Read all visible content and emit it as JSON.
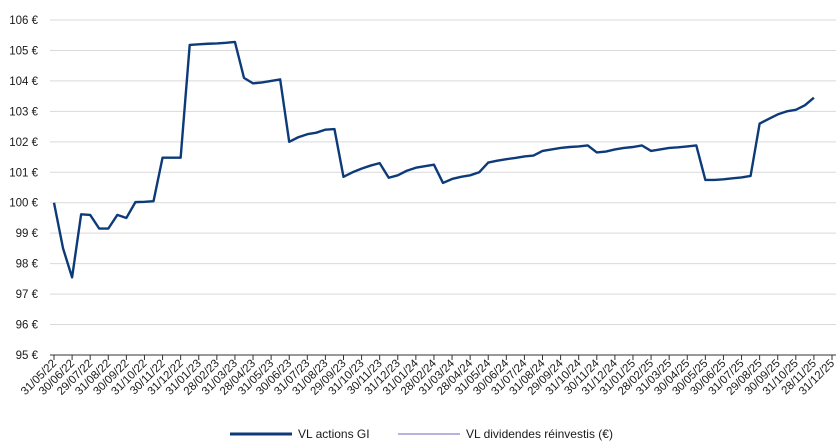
{
  "chart_data": {
    "type": "line",
    "title": "",
    "xlabel": "",
    "ylabel": "",
    "y_unit_suffix": " €",
    "ylim": [
      95,
      106
    ],
    "y_ticks": [
      95,
      96,
      97,
      98,
      99,
      100,
      101,
      102,
      103,
      104,
      105,
      106
    ],
    "y_tick_labels": [
      "95 €",
      "96 €",
      "97 €",
      "98 €",
      "99 €",
      "100 €",
      "101 €",
      "102 €",
      "103 €",
      "104 €",
      "105 €",
      "106 €"
    ],
    "x_tick_labels": [
      "31/05/22",
      "30/06/22",
      "29/07/22",
      "31/08/22",
      "30/09/22",
      "31/10/22",
      "30/11/22",
      "31/12/22",
      "31/01/23",
      "28/02/23",
      "31/03/23",
      "28/04/23",
      "31/05/23",
      "30/06/23",
      "31/07/23",
      "31/08/23",
      "29/09/23",
      "31/10/23",
      "30/11/23",
      "31/12/23",
      "31/01/24",
      "28/02/24",
      "31/03/24",
      "28/04/24",
      "31/05/24",
      "30/06/24",
      "31/07/24",
      "31/08/24",
      "29/09/24",
      "31/10/24",
      "30/11/24",
      "31/12/24",
      "31/01/25",
      "28/02/25",
      "31/03/25",
      "30/04/25",
      "30/05/25",
      "30/06/25",
      "31/07/25",
      "29/08/25",
      "30/09/25",
      "31/10/25",
      "28/11/25",
      "31/12/25"
    ],
    "grid": {
      "horizontal": true,
      "vertical": false
    },
    "legend_position": "bottom-center",
    "series": [
      {
        "name": "VL actions GI",
        "color": "#0d3b7a",
        "points": [
          [
            0,
            100.0
          ],
          [
            0.5,
            98.5
          ],
          [
            1.0,
            97.55
          ],
          [
            1.5,
            99.62
          ],
          [
            2.0,
            99.6
          ],
          [
            2.5,
            99.15
          ],
          [
            3.0,
            99.15
          ],
          [
            3.5,
            99.6
          ],
          [
            4.0,
            99.5
          ],
          [
            4.5,
            100.02
          ],
          [
            5.0,
            100.03
          ],
          [
            5.5,
            100.05
          ],
          [
            6.0,
            101.48
          ],
          [
            6.5,
            101.48
          ],
          [
            7.0,
            101.48
          ],
          [
            7.5,
            105.18
          ],
          [
            8.0,
            105.2
          ],
          [
            8.5,
            105.22
          ],
          [
            9.0,
            105.23
          ],
          [
            9.5,
            105.25
          ],
          [
            10.0,
            105.28
          ],
          [
            10.5,
            104.1
          ],
          [
            11.0,
            103.92
          ],
          [
            11.5,
            103.95
          ],
          [
            12.0,
            104.0
          ],
          [
            12.5,
            104.05
          ],
          [
            13.0,
            102.0
          ],
          [
            13.5,
            102.15
          ],
          [
            14.0,
            102.25
          ],
          [
            14.5,
            102.3
          ],
          [
            15.0,
            102.4
          ],
          [
            15.5,
            102.42
          ],
          [
            16.0,
            100.85
          ],
          [
            16.5,
            101.0
          ],
          [
            17.0,
            101.12
          ],
          [
            17.5,
            101.22
          ],
          [
            18.0,
            101.3
          ],
          [
            18.5,
            100.82
          ],
          [
            19.0,
            100.9
          ],
          [
            19.5,
            101.05
          ],
          [
            20.0,
            101.15
          ],
          [
            20.5,
            101.2
          ],
          [
            21.0,
            101.25
          ],
          [
            21.5,
            100.65
          ],
          [
            22.0,
            100.78
          ],
          [
            22.5,
            100.85
          ],
          [
            23.0,
            100.9
          ],
          [
            23.5,
            101.0
          ],
          [
            24.0,
            101.32
          ],
          [
            24.5,
            101.38
          ],
          [
            25.0,
            101.43
          ],
          [
            25.5,
            101.47
          ],
          [
            26.0,
            101.52
          ],
          [
            26.5,
            101.55
          ],
          [
            27.0,
            101.7
          ],
          [
            27.5,
            101.75
          ],
          [
            28.0,
            101.8
          ],
          [
            28.5,
            101.83
          ],
          [
            29.0,
            101.85
          ],
          [
            29.5,
            101.88
          ],
          [
            30.0,
            101.65
          ],
          [
            30.5,
            101.68
          ],
          [
            31.0,
            101.75
          ],
          [
            31.5,
            101.8
          ],
          [
            32.0,
            101.83
          ],
          [
            32.5,
            101.88
          ],
          [
            33.0,
            101.7
          ],
          [
            33.5,
            101.75
          ],
          [
            34.0,
            101.8
          ],
          [
            34.5,
            101.82
          ],
          [
            35.0,
            101.85
          ],
          [
            35.5,
            101.88
          ],
          [
            36.0,
            100.75
          ],
          [
            36.5,
            100.75
          ],
          [
            37.0,
            100.77
          ],
          [
            37.5,
            100.8
          ],
          [
            38.0,
            100.83
          ],
          [
            38.5,
            100.88
          ],
          [
            39.0,
            102.6
          ],
          [
            39.5,
            102.75
          ],
          [
            40.0,
            102.9
          ],
          [
            40.5,
            103.0
          ],
          [
            41.0,
            103.05
          ],
          [
            41.5,
            103.2
          ],
          [
            42.0,
            103.45
          ]
        ]
      },
      {
        "name": "VL dividendes réinvestis (€)",
        "color": "#b7b4dc",
        "points": []
      }
    ]
  }
}
